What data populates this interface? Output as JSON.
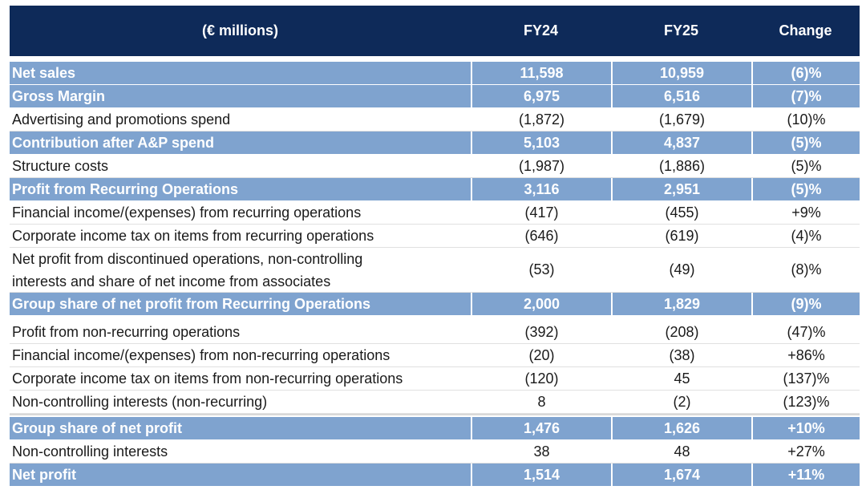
{
  "header": {
    "label": "(€ millions)",
    "fy24": "FY24",
    "fy25": "FY25",
    "change": "Change"
  },
  "rows": [
    {
      "label": "Net sales",
      "fy24": "11,598",
      "fy25": "10,959",
      "change": "(6)%"
    },
    {
      "label": "Gross Margin",
      "fy24": "6,975",
      "fy25": "6,516",
      "change": "(7)%"
    },
    {
      "label": "Advertising and promotions spend",
      "fy24": "(1,872)",
      "fy25": "(1,679)",
      "change": "(10)%"
    },
    {
      "label": "Contribution after A&P spend",
      "fy24": "5,103",
      "fy25": "4,837",
      "change": "(5)%"
    },
    {
      "label": "Structure costs",
      "fy24": "(1,987)",
      "fy25": "(1,886)",
      "change": "(5)%"
    },
    {
      "label": "Profit from Recurring Operations",
      "fy24": "3,116",
      "fy25": "2,951",
      "change": "(5)%"
    },
    {
      "label": "Financial income/(expenses) from recurring operations",
      "fy24": "(417)",
      "fy25": "(455)",
      "change": "+9%"
    },
    {
      "label": "Corporate income tax on items from recurring operations",
      "fy24": "(646)",
      "fy25": "(619)",
      "change": "(4)%"
    },
    {
      "label_line1": "Net profit from discontinued operations, non-controlling",
      "label_line2": "interests and share of net income from associates",
      "fy24": "(53)",
      "fy25": "(49)",
      "change": "(8)%"
    },
    {
      "label": "Group share of net profit from Recurring Operations",
      "fy24": "2,000",
      "fy25": "1,829",
      "change": "(9)%"
    },
    {
      "label": "Profit from non-recurring operations",
      "fy24": "(392)",
      "fy25": "(208)",
      "change": "(47)%"
    },
    {
      "label": "Financial income/(expenses) from non-recurring operations",
      "fy24": "(20)",
      "fy25": "(38)",
      "change": "+86%"
    },
    {
      "label": "Corporate income tax on items from non-recurring operations",
      "fy24": "(120)",
      "fy25": "45",
      "change": "(137)%"
    },
    {
      "label": "Non-controlling interests (non-recurring)",
      "fy24": "8",
      "fy25": "(2)",
      "change": "(123)%"
    },
    {
      "label": "Group share of net profit",
      "fy24": "1,476",
      "fy25": "1,626",
      "change": "+10%"
    },
    {
      "label": "Non-controlling interests",
      "fy24": "38",
      "fy25": "48",
      "change": "+27%"
    },
    {
      "label": "Net profit",
      "fy24": "1,514",
      "fy25": "1,674",
      "change": "+11%"
    }
  ]
}
